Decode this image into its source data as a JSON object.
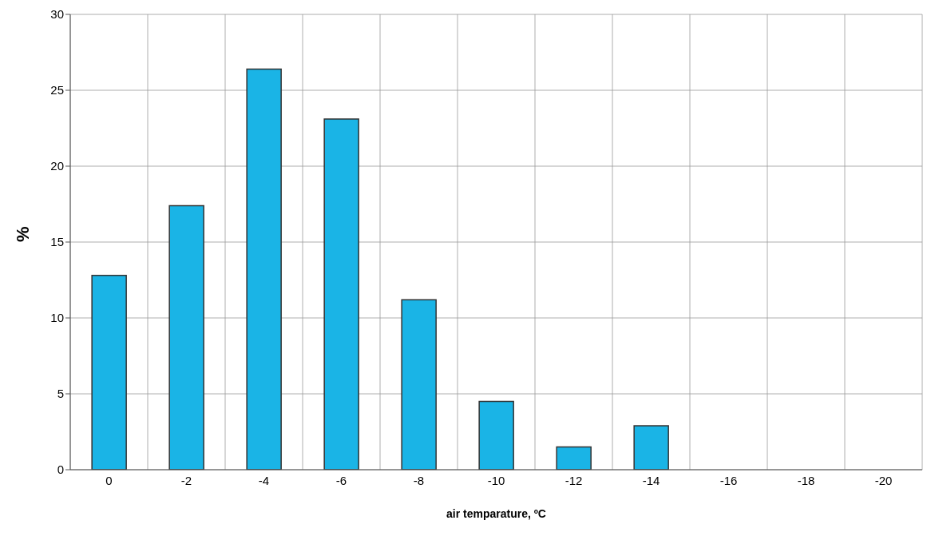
{
  "chart_data": {
    "type": "bar",
    "xlabel": "air temparature, ºC",
    "ylabel": "%",
    "categories": [
      "0",
      "-2",
      "-4",
      "-6",
      "-8",
      "-10",
      "-12",
      "-14",
      "-16",
      "-18",
      "-20"
    ],
    "values": [
      12.8,
      17.4,
      26.4,
      23.1,
      11.2,
      4.5,
      1.5,
      2.9,
      0,
      0,
      0
    ],
    "color": "#1ab4e6",
    "ylim": [
      0,
      30
    ],
    "yticks": [
      0,
      5,
      10,
      15,
      20,
      25,
      30
    ],
    "grid": true,
    "legend": false
  }
}
